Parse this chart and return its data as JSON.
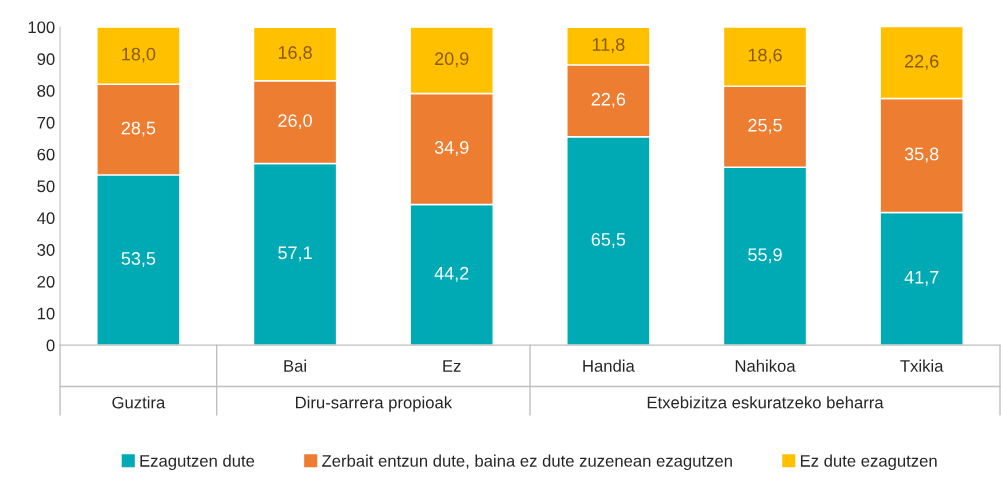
{
  "chart_data": {
    "type": "bar",
    "stacked": true,
    "categories": [
      null,
      "Bai",
      "Ez",
      "Handia",
      "Nahikoa",
      "Txikia"
    ],
    "series": [
      {
        "name": "Ezagutzen dute",
        "color": "#00aab4",
        "values": [
          53.5,
          57.1,
          44.2,
          65.5,
          55.9,
          41.7
        ],
        "value_labels": [
          "53,5",
          "57,1",
          "44,2",
          "65,5",
          "55,9",
          "41,7"
        ]
      },
      {
        "name": "Zerbait entzun dute, baina ez dute zuzenean ezagutzen",
        "color": "#ed7d31",
        "values": [
          28.5,
          26.0,
          34.9,
          22.6,
          25.5,
          35.8
        ],
        "value_labels": [
          "28,5",
          "26,0",
          "34,9",
          "22,6",
          "25,5",
          "35,8"
        ]
      },
      {
        "name": "Ez dute ezagutzen",
        "color": "#ffc000",
        "values": [
          18.0,
          16.8,
          20.9,
          11.8,
          18.6,
          22.6
        ],
        "value_labels": [
          "18,0",
          "16,8",
          "20,9",
          "11,8",
          "18,6",
          "22,6"
        ]
      }
    ],
    "annotations": [
      "Guztira",
      "Diru-sarrera propioak",
      "Etxebizitza eskuratzeko beharra"
    ],
    "ylim": [
      0,
      100
    ],
    "yticks": [
      0,
      10,
      20,
      30,
      40,
      50,
      60,
      70,
      80,
      90,
      100
    ],
    "grid": false,
    "legend": "bottom"
  }
}
